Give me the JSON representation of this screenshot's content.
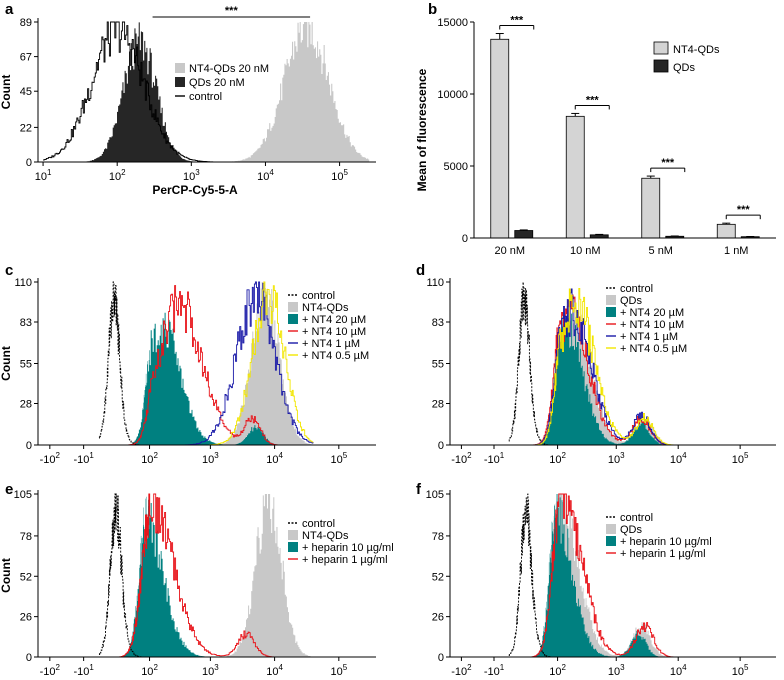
{
  "figure": "six-panel flow cytometry figure",
  "chart_data": [
    {
      "id": "a",
      "panel_label": "a",
      "type": "area",
      "xscale": "log",
      "xlabel": "PerCP-Cy5-5-A",
      "ylabel": "Count",
      "x_ticks": [
        {
          "value": 10,
          "label": "10",
          "exp": "1"
        },
        {
          "value": 100,
          "label": "10",
          "exp": "2"
        },
        {
          "value": 1000,
          "label": "10",
          "exp": "3"
        },
        {
          "value": 10000,
          "label": "10",
          "exp": "4"
        },
        {
          "value": 100000,
          "label": "10",
          "exp": "5"
        }
      ],
      "y_ticks": [
        0,
        22,
        45,
        67,
        89
      ],
      "ylim": [
        0,
        89
      ],
      "annotations": [
        {
          "text": "***",
          "x_start": 300,
          "x_end": 40000
        }
      ],
      "series": [
        {
          "name": "NT4-QDs 20 nM",
          "style": "fill",
          "color": "#c8c8c8",
          "peak_log10": 4.55,
          "sigma": 0.3,
          "peak_count": 86
        },
        {
          "name": "QDs 20 nM",
          "style": "fill",
          "color": "#262626",
          "peak_log10": 2.3,
          "sigma": 0.22,
          "peak_count": 76
        },
        {
          "name": "control",
          "style": "line",
          "color": "#000000",
          "peak_log10": 2.0,
          "sigma": 0.35,
          "peak_count": 84
        }
      ]
    },
    {
      "id": "b",
      "panel_label": "b",
      "type": "bar",
      "categories": [
        "20 nM",
        "10 nM",
        "5 nM",
        "1 nM"
      ],
      "ylabel": "Mean of fluorescence",
      "ylim": [
        0,
        15000
      ],
      "y_ticks": [
        0,
        5000,
        10000,
        15000
      ],
      "series": [
        {
          "name": "NT4-QDs",
          "color": "#d4d4d4",
          "values": [
            13800,
            8450,
            4150,
            950
          ],
          "errors": [
            400,
            200,
            150,
            80
          ]
        },
        {
          "name": "QDs",
          "color": "#262626",
          "values": [
            520,
            220,
            120,
            90
          ],
          "errors": [
            40,
            30,
            20,
            15
          ]
        }
      ],
      "significance": [
        "***",
        "***",
        "***",
        "***"
      ]
    },
    {
      "id": "c",
      "panel_label": "c",
      "type": "area",
      "xscale": "biexponential",
      "ylabel": "Count",
      "x_ticks": [
        {
          "pos": -2,
          "label": "-10",
          "exp": "2"
        },
        {
          "pos": -1,
          "label": "-10",
          "exp": "1"
        },
        {
          "pos": 2,
          "label": "10",
          "exp": "2"
        },
        {
          "pos": 3,
          "label": "10",
          "exp": "3"
        },
        {
          "pos": 4,
          "label": "10",
          "exp": "4"
        },
        {
          "pos": 5,
          "label": "10",
          "exp": "5"
        }
      ],
      "y_ticks": [
        0,
        28,
        55,
        83,
        110
      ],
      "ylim": [
        0,
        110
      ],
      "series": [
        {
          "name": "control",
          "style": "dashed",
          "color": "#000000",
          "peaks": [
            [
              0.45,
              0.3,
              100
            ]
          ]
        },
        {
          "name": "NT4-QDs",
          "style": "fill",
          "color": "#c8c8c8",
          "peaks": [
            [
              3.85,
              0.22,
              100
            ]
          ]
        },
        {
          "name": "+ NT4 20 µM",
          "style": "fill",
          "color": "#008080",
          "peaks": [
            [
              2.2,
              0.3,
              80
            ],
            [
              3.7,
              0.12,
              12
            ]
          ]
        },
        {
          "name": "+ NT4 10 µM",
          "style": "line",
          "color": "#e8151b",
          "peaks": [
            [
              2.5,
              0.36,
              95
            ],
            [
              3.65,
              0.12,
              18
            ]
          ]
        },
        {
          "name": "+ NT4 1 µM",
          "style": "line",
          "color": "#1a1aa8",
          "peaks": [
            [
              3.7,
              0.3,
              100
            ]
          ]
        },
        {
          "name": "+ NT4 0.5 µM",
          "style": "line",
          "color": "#f2e600",
          "peaks": [
            [
              3.9,
              0.25,
              100
            ]
          ]
        }
      ]
    },
    {
      "id": "d",
      "panel_label": "d",
      "type": "area",
      "xscale": "biexponential",
      "x_ticks": [
        {
          "pos": -2,
          "label": "-10",
          "exp": "2"
        },
        {
          "pos": -1,
          "label": "-10",
          "exp": "1"
        },
        {
          "pos": 2,
          "label": "10",
          "exp": "2"
        },
        {
          "pos": 3,
          "label": "10",
          "exp": "3"
        },
        {
          "pos": 4,
          "label": "10",
          "exp": "4"
        },
        {
          "pos": 5,
          "label": "10",
          "exp": "5"
        }
      ],
      "y_ticks": [
        0,
        28,
        55,
        83,
        110
      ],
      "ylim": [
        0,
        110
      ],
      "series": [
        {
          "name": "control",
          "style": "dashed",
          "color": "#000000",
          "peaks": [
            [
              0.5,
              0.3,
              100
            ]
          ]
        },
        {
          "name": "QDs",
          "style": "fill",
          "color": "#c8c8c8",
          "peaks": [
            [
              2.25,
              0.3,
              88
            ],
            [
              3.45,
              0.14,
              18
            ]
          ]
        },
        {
          "name": "+ NT4 20 µM",
          "style": "fill",
          "color": "#008080",
          "peaks": [
            [
              2.15,
              0.28,
              80
            ],
            [
              3.4,
              0.13,
              14
            ]
          ]
        },
        {
          "name": "+ NT4 10 µM",
          "style": "line",
          "color": "#e8151b",
          "peaks": [
            [
              2.2,
              0.32,
              88
            ],
            [
              3.4,
              0.14,
              18
            ]
          ]
        },
        {
          "name": "+ NT4 1 µM",
          "style": "line",
          "color": "#1a1aa8",
          "peaks": [
            [
              2.25,
              0.32,
              90
            ],
            [
              3.4,
              0.14,
              20
            ]
          ]
        },
        {
          "name": "+ NT4 0.5 µM",
          "style": "line",
          "color": "#f2e600",
          "peaks": [
            [
              2.3,
              0.32,
              95
            ],
            [
              3.45,
              0.14,
              18
            ]
          ]
        }
      ]
    },
    {
      "id": "e",
      "panel_label": "e",
      "type": "area",
      "xscale": "biexponential",
      "ylabel": "Count",
      "x_ticks": [
        {
          "pos": -2,
          "label": "-10",
          "exp": "2"
        },
        {
          "pos": -1,
          "label": "-10",
          "exp": "1"
        },
        {
          "pos": 2,
          "label": "10",
          "exp": "2"
        },
        {
          "pos": 3,
          "label": "10",
          "exp": "3"
        },
        {
          "pos": 4,
          "label": "10",
          "exp": "4"
        },
        {
          "pos": 5,
          "label": "10",
          "exp": "5"
        }
      ],
      "y_ticks": [
        0,
        26,
        52,
        78,
        105
      ],
      "ylim": [
        0,
        105
      ],
      "series": [
        {
          "name": "control",
          "style": "dashed",
          "color": "#000000",
          "peaks": [
            [
              0.55,
              0.3,
              95
            ]
          ]
        },
        {
          "name": "NT4-QDs",
          "style": "fill",
          "color": "#c8c8c8",
          "peaks": [
            [
              3.9,
              0.2,
              100
            ]
          ]
        },
        {
          "name": "+ heparin 10 µg/ml",
          "style": "fill",
          "color": "#008080",
          "peaks": [
            [
              1.9,
              0.3,
              92
            ]
          ]
        },
        {
          "name": "+ heparin 1 µg/ml",
          "style": "line",
          "color": "#e8151b",
          "peaks": [
            [
              2.05,
              0.35,
              95
            ],
            [
              3.55,
              0.13,
              15
            ]
          ]
        }
      ]
    },
    {
      "id": "f",
      "panel_label": "f",
      "type": "area",
      "xscale": "biexponential",
      "x_ticks": [
        {
          "pos": -2,
          "label": "-10",
          "exp": "2"
        },
        {
          "pos": -1,
          "label": "-10",
          "exp": "1"
        },
        {
          "pos": 2,
          "label": "10",
          "exp": "2"
        },
        {
          "pos": 3,
          "label": "10",
          "exp": "3"
        },
        {
          "pos": 4,
          "label": "10",
          "exp": "4"
        },
        {
          "pos": 5,
          "label": "10",
          "exp": "5"
        }
      ],
      "y_ticks": [
        0,
        26,
        52,
        78,
        105
      ],
      "ylim": [
        0,
        105
      ],
      "series": [
        {
          "name": "control",
          "style": "dashed",
          "color": "#000000",
          "peaks": [
            [
              0.6,
              0.3,
              95
            ]
          ]
        },
        {
          "name": "QDs",
          "style": "fill",
          "color": "#c8c8c8",
          "peaks": [
            [
              2.05,
              0.3,
              100
            ],
            [
              3.4,
              0.14,
              20
            ]
          ]
        },
        {
          "name": "+ heparin 10 µg/ml",
          "style": "fill",
          "color": "#008080",
          "peaks": [
            [
              1.95,
              0.28,
              95
            ],
            [
              3.35,
              0.12,
              15
            ]
          ]
        },
        {
          "name": "+ heparin 1 µg/ml",
          "style": "line",
          "color": "#e8151b",
          "peaks": [
            [
              2.1,
              0.32,
              98
            ],
            [
              3.45,
              0.14,
              20
            ]
          ]
        }
      ]
    }
  ]
}
